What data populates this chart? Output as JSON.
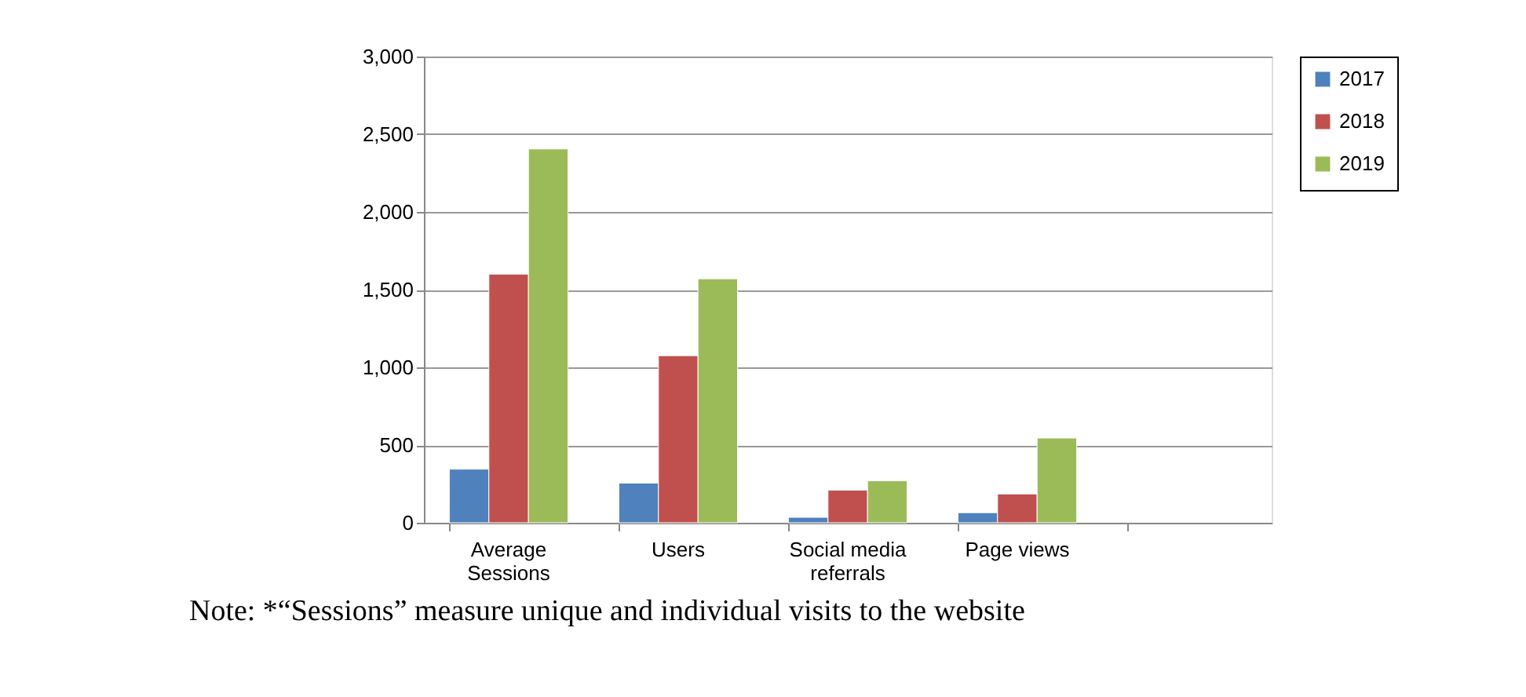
{
  "chart_data": {
    "type": "bar",
    "categories": [
      "Average Sessions",
      "Users",
      "Social media referrals",
      "Page views",
      null
    ],
    "series": [
      {
        "name": "2017",
        "color": "#4f81bd",
        "values": [
          345,
          255,
          35,
          65,
          null
        ]
      },
      {
        "name": "2018",
        "color": "#c0504d",
        "values": [
          1600,
          1075,
          210,
          185,
          null
        ]
      },
      {
        "name": "2019",
        "color": "#9bbb59",
        "values": [
          2405,
          1570,
          270,
          545,
          null
        ]
      }
    ],
    "ylim": [
      0,
      3000
    ],
    "yticks": [
      {
        "value": 0,
        "label": "0"
      },
      {
        "value": 500,
        "label": "500"
      },
      {
        "value": 1000,
        "label": "1,000"
      },
      {
        "value": 1500,
        "label": "1,500"
      },
      {
        "value": 2000,
        "label": "2,000"
      },
      {
        "value": 2500,
        "label": "2,500"
      },
      {
        "value": 3000,
        "label": "3,000"
      }
    ],
    "grid": "y",
    "legend": "right",
    "annotations": [
      "Note: *“Sessions” measure unique and individual visits to the website"
    ]
  }
}
